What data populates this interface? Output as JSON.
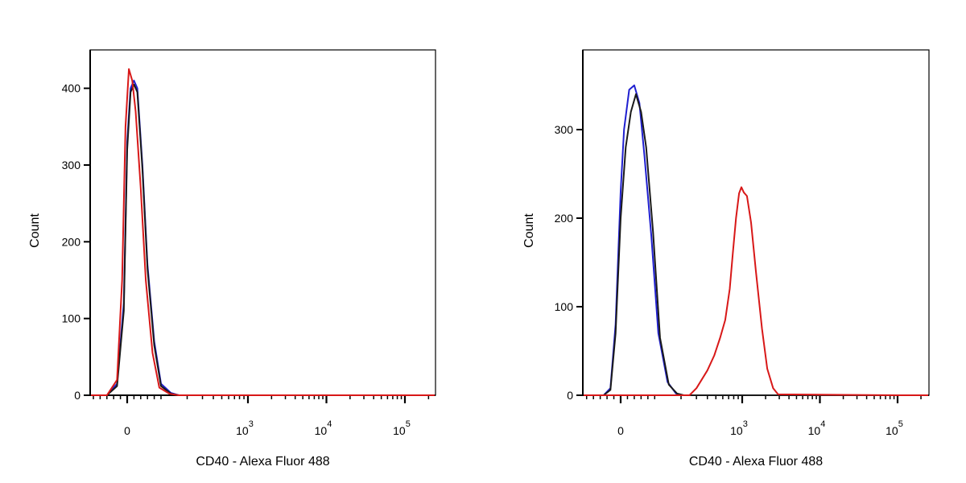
{
  "chart_data": [
    {
      "type": "line",
      "title": "",
      "xlabel": "CD40 - Alexa Fluor 488",
      "ylabel": "Count",
      "x_scale": "biexponential",
      "x_ticks": [
        {
          "value": 0,
          "label": "0",
          "sup": ""
        },
        {
          "value": 1000,
          "label": "10",
          "sup": "3"
        },
        {
          "value": 10000,
          "label": "10",
          "sup": "4"
        },
        {
          "value": 100000,
          "label": "10",
          "sup": "5"
        }
      ],
      "y_ticks": [
        0,
        100,
        200,
        300,
        400
      ],
      "ylim": [
        0,
        450
      ],
      "grid": false,
      "legend": "none",
      "series": [
        {
          "color": "#1f1fd0",
          "x": [
            -60,
            -30,
            -10,
            0,
            10,
            20,
            30,
            45,
            60,
            80,
            100,
            130,
            160,
            200
          ],
          "y": [
            0,
            15,
            120,
            330,
            400,
            410,
            400,
            300,
            170,
            70,
            15,
            3,
            0,
            0
          ]
        },
        {
          "color": "#1a1a1a",
          "x": [
            -60,
            -30,
            -10,
            0,
            10,
            20,
            30,
            45,
            60,
            80,
            100,
            130,
            160,
            200
          ],
          "y": [
            0,
            12,
            110,
            320,
            395,
            405,
            395,
            295,
            165,
            65,
            12,
            2,
            0,
            0
          ]
        },
        {
          "color": "#d81818",
          "x": [
            -60,
            -30,
            -15,
            -5,
            5,
            15,
            25,
            40,
            55,
            75,
            95,
            125,
            160,
            200
          ],
          "y": [
            0,
            20,
            150,
            350,
            425,
            410,
            370,
            270,
            150,
            55,
            10,
            2,
            0,
            0
          ]
        }
      ]
    },
    {
      "type": "line",
      "title": "",
      "xlabel": "CD40 - Alexa Fluor 488",
      "ylabel": "Count",
      "x_scale": "biexponential",
      "x_ticks": [
        {
          "value": 0,
          "label": "0",
          "sup": ""
        },
        {
          "value": 1000,
          "label": "10",
          "sup": "3"
        },
        {
          "value": 10000,
          "label": "10",
          "sup": "4"
        },
        {
          "value": 100000,
          "label": "10",
          "sup": "5"
        }
      ],
      "y_ticks": [
        0,
        100,
        200,
        300
      ],
      "ylim": [
        0,
        390
      ],
      "grid": false,
      "legend": "none",
      "series": [
        {
          "color": "#1f1fd0",
          "x": [
            -50,
            -30,
            -15,
            0,
            10,
            25,
            40,
            55,
            70,
            90,
            110,
            140,
            175,
            210,
            250
          ],
          "y": [
            0,
            8,
            80,
            230,
            300,
            345,
            350,
            330,
            270,
            180,
            70,
            15,
            2,
            0,
            0
          ]
        },
        {
          "color": "#1a1a1a",
          "x": [
            -50,
            -30,
            -15,
            0,
            15,
            30,
            45,
            60,
            75,
            95,
            115,
            145,
            180,
            215,
            250
          ],
          "y": [
            0,
            6,
            70,
            200,
            280,
            320,
            340,
            320,
            280,
            185,
            65,
            12,
            2,
            0,
            0
          ]
        },
        {
          "color": "#d81818",
          "x": [
            -50,
            250,
            300,
            400,
            480,
            560,
            640,
            720,
            780,
            850,
            920,
            980,
            1050,
            1150,
            1300,
            1500,
            1800,
            2100,
            2500,
            2900,
            100000
          ],
          "y": [
            0,
            0,
            8,
            28,
            45,
            65,
            85,
            120,
            160,
            200,
            228,
            235,
            229,
            225,
            195,
            140,
            75,
            30,
            8,
            1,
            0
          ]
        }
      ]
    }
  ]
}
